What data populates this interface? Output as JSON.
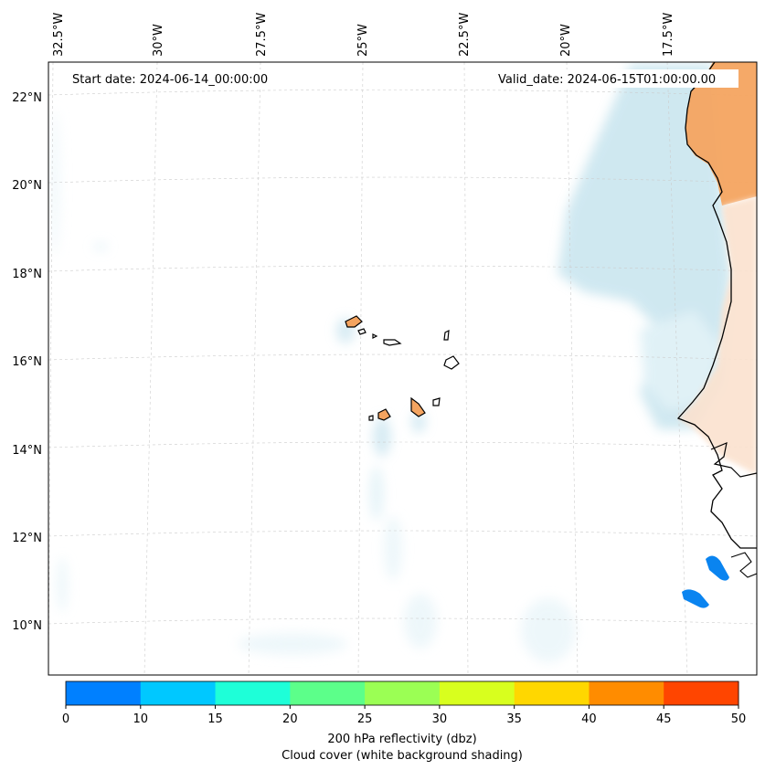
{
  "map": {
    "start_date": "Start date: 2024-06-14_00:00:00",
    "valid_date": "Valid_date: 2024-06-15T01:00:00.00",
    "lon_labels": [
      "32.5°W",
      "30°W",
      "27.5°W",
      "25°W",
      "22.5°W",
      "20°W",
      "17.5°W"
    ],
    "lat_labels": [
      "22°N",
      "20°N",
      "18°N",
      "16°N",
      "14°N",
      "12°N",
      "10°N"
    ],
    "features": {
      "land_color": "#f4a460",
      "coast_color": "#000000",
      "cloud_color": "#a9d6e5",
      "reflectivity_cell_color": "#0a84f0"
    }
  },
  "colorbar": {
    "colors": [
      "#0080ff",
      "#00c8ff",
      "#1effd8",
      "#5cff8a",
      "#9bff54",
      "#d8ff1e",
      "#ffd700",
      "#ff8c00",
      "#ff4500"
    ],
    "ticks": [
      "0",
      "10",
      "15",
      "20",
      "25",
      "30",
      "35",
      "40",
      "45",
      "50"
    ],
    "label_line1": "200 hPa reflectivity (dbz)",
    "label_line2": "Cloud cover (white background shading)"
  }
}
